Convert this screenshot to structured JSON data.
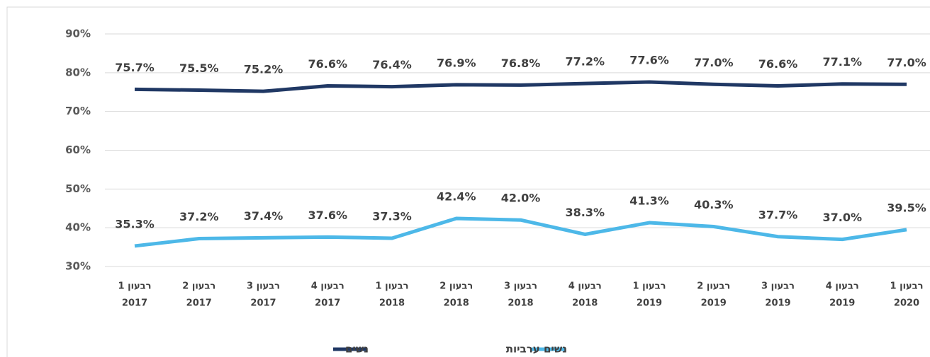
{
  "chart_data": {
    "type": "line",
    "categories": [
      [
        "רבעון 1",
        "2017"
      ],
      [
        "רבעון 2",
        "2017"
      ],
      [
        "רבעון 3",
        "2017"
      ],
      [
        "רבעון 4",
        "2017"
      ],
      [
        "רבעון 1",
        "2018"
      ],
      [
        "רבעון 2",
        "2018"
      ],
      [
        "רבעון 3",
        "2018"
      ],
      [
        "רבעון 4",
        "2018"
      ],
      [
        "רבעון 1",
        "2019"
      ],
      [
        "רבעון 2",
        "2019"
      ],
      [
        "רבעון 3",
        "2019"
      ],
      [
        "רבעון 4",
        "2019"
      ],
      [
        "רבעון 1",
        "2020"
      ]
    ],
    "series": [
      {
        "name": "נשים",
        "color": "#203864",
        "values": [
          75.7,
          75.5,
          75.2,
          76.6,
          76.4,
          76.9,
          76.8,
          77.2,
          77.6,
          77.0,
          76.6,
          77.1,
          77.0
        ],
        "value_labels": [
          "75.7%",
          "75.5%",
          "75.2%",
          "76.6%",
          "76.4%",
          "76.9%",
          "76.8%",
          "77.2%",
          "77.6%",
          "77.0%",
          "76.6%",
          "77.1%",
          "77.0%"
        ]
      },
      {
        "name": "נשים ערביות",
        "color": "#4db8e8",
        "values": [
          35.3,
          37.2,
          37.4,
          37.6,
          37.3,
          42.4,
          42.0,
          38.3,
          41.3,
          40.3,
          37.7,
          37.0,
          39.5
        ],
        "value_labels": [
          "35.3%",
          "37.2%",
          "37.4%",
          "37.6%",
          "37.3%",
          "42.4%",
          "42.0%",
          "38.3%",
          "41.3%",
          "40.3%",
          "37.7%",
          "37.0%",
          "39.5%"
        ]
      }
    ],
    "ylim": [
      30,
      90
    ],
    "yticks": [
      {
        "value": 30,
        "label": "30%"
      },
      {
        "value": 40,
        "label": "40%"
      },
      {
        "value": 50,
        "label": "50%"
      },
      {
        "value": 60,
        "label": "60%"
      },
      {
        "value": 70,
        "label": "70%"
      },
      {
        "value": 80,
        "label": "80%"
      },
      {
        "value": 90,
        "label": "90%"
      }
    ],
    "grid": true
  }
}
